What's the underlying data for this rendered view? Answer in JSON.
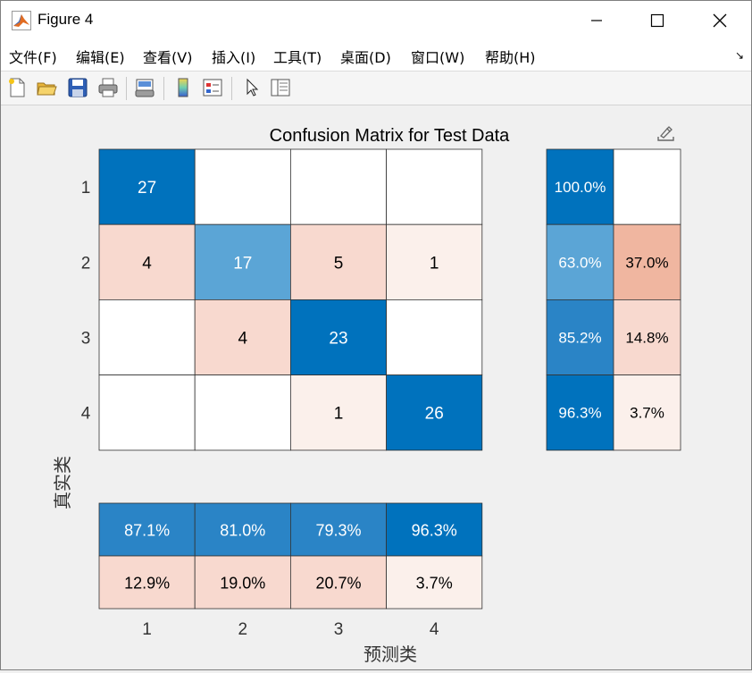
{
  "window": {
    "title": "Figure 4"
  },
  "menu": {
    "items": [
      "文件(F)",
      "编辑(E)",
      "查看(V)",
      "插入(I)",
      "工具(T)",
      "桌面(D)",
      "窗口(W)",
      "帮助(H)"
    ]
  },
  "toolbar": {
    "icons": [
      "new-figure",
      "open-file",
      "save",
      "print",
      "print-preview",
      "insert-colorbar",
      "insert-legend",
      "edit-plot-pointer",
      "property-inspector"
    ]
  },
  "colors": {
    "dark_blue": "#0072bd",
    "mid_blue": "#5ba5d6",
    "pale_red": "#f8d9cf",
    "mid_red": "#f0b6a0",
    "lightest_red": "#fbf0eb"
  },
  "chart_data": {
    "type": "heatmap",
    "title": "Confusion Matrix for Test Data",
    "xlabel": "预测类",
    "ylabel": "真实类",
    "classes": [
      "1",
      "2",
      "3",
      "4"
    ],
    "matrix": [
      [
        27,
        0,
        0,
        0
      ],
      [
        4,
        17,
        5,
        1
      ],
      [
        0,
        4,
        23,
        0
      ],
      [
        0,
        0,
        1,
        26
      ]
    ],
    "row_summary": [
      [
        "100.0%",
        ""
      ],
      [
        "63.0%",
        "37.0%"
      ],
      [
        "85.2%",
        "14.8%"
      ],
      [
        "96.3%",
        "3.7%"
      ]
    ],
    "column_summary": [
      [
        "87.1%",
        "81.0%",
        "79.3%",
        "96.3%"
      ],
      [
        "12.9%",
        "19.0%",
        "20.7%",
        "3.7%"
      ]
    ]
  }
}
